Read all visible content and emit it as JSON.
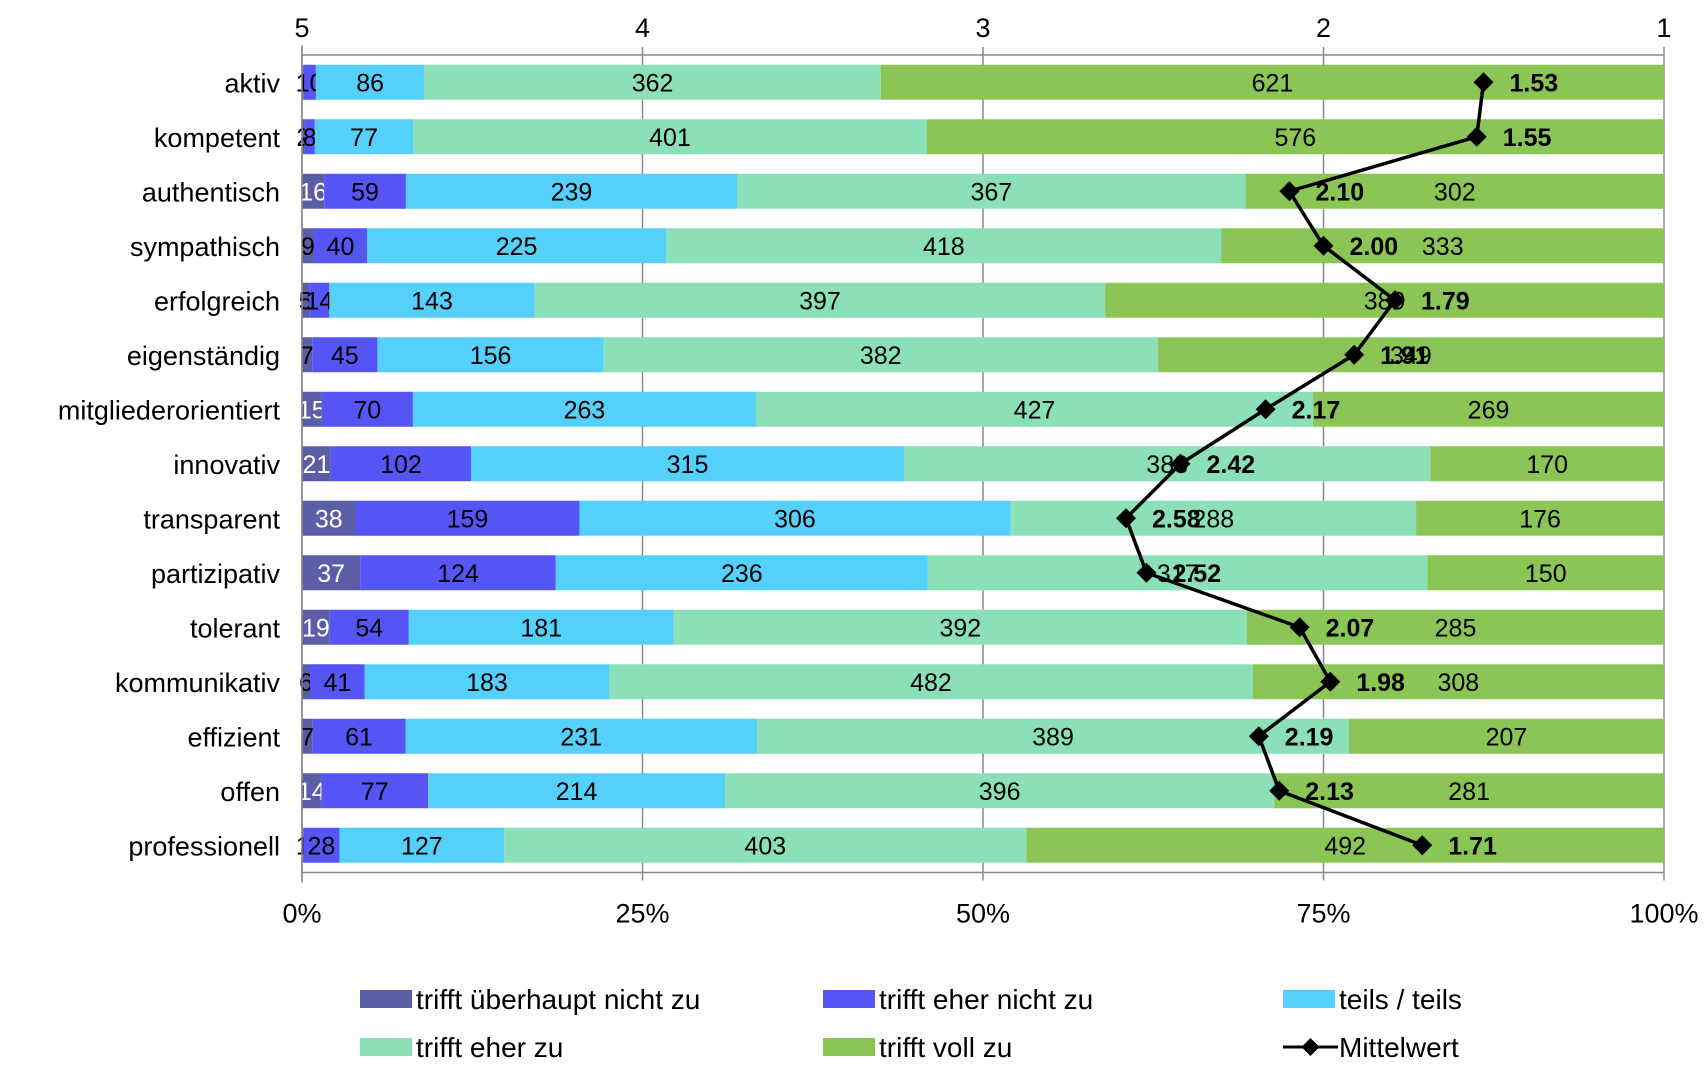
{
  "chart_data": {
    "type": "bar",
    "orientation": "horizontal",
    "stacked": "percent",
    "categories": [
      "aktiv",
      "kompetent",
      "authentisch",
      "sympathisch",
      "erfolgreich",
      "eigenständig",
      "mitgliederorientiert",
      "innovativ",
      "transparent",
      "partizipativ",
      "tolerant",
      "kommunikativ",
      "effizient",
      "offen",
      "professionell"
    ],
    "series": [
      {
        "name": "trifft überhaupt nicht zu",
        "color": "#5b5ea6",
        "values": [
          1,
          2,
          16,
          9,
          5,
          7,
          15,
          21,
          38,
          37,
          19,
          6,
          7,
          14,
          1
        ]
      },
      {
        "name": "trifft eher nicht zu",
        "color": "#5555f5",
        "values": [
          10,
          8,
          59,
          40,
          14,
          45,
          70,
          102,
          159,
          124,
          54,
          41,
          61,
          77,
          28
        ]
      },
      {
        "name": "teils / teils",
        "color": "#55d0fa",
        "values": [
          86,
          77,
          239,
          225,
          143,
          156,
          263,
          315,
          306,
          236,
          181,
          183,
          231,
          214,
          127
        ]
      },
      {
        "name": "trifft eher zu",
        "color": "#8be0b8",
        "values": [
          362,
          401,
          367,
          418,
          397,
          382,
          427,
          383,
          288,
          317,
          392,
          482,
          389,
          396,
          403
        ]
      },
      {
        "name": "trifft voll zu",
        "color": "#8bc555",
        "values": [
          621,
          576,
          302,
          333,
          389,
          349,
          269,
          170,
          176,
          150,
          285,
          308,
          207,
          281,
          492
        ]
      }
    ],
    "line_series": {
      "name": "Mittelwert",
      "color": "#000000",
      "values": [
        1.53,
        1.55,
        2.1,
        2.0,
        1.79,
        1.91,
        2.17,
        2.42,
        2.58,
        2.52,
        2.07,
        1.98,
        2.19,
        2.13,
        1.71
      ]
    },
    "mean_labels": [
      "1.53",
      "1.55",
      "2.10",
      "2.00",
      "1.79",
      "1.91",
      "2.17",
      "2.42",
      "2.58",
      "2.52",
      "2.07",
      "1.98",
      "2.19",
      "2.13",
      "1.71"
    ],
    "x_bottom": {
      "ticks": [
        "0%",
        "25%",
        "50%",
        "75%",
        "100%"
      ],
      "range": [
        0,
        100
      ]
    },
    "x_top": {
      "ticks": [
        "5",
        "4",
        "3",
        "2",
        "1"
      ],
      "range": [
        5,
        1
      ]
    },
    "grid": true,
    "legend": {
      "position": "bottom",
      "columns": 3
    }
  }
}
